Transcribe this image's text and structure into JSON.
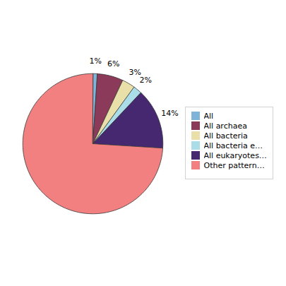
{
  "chart_data": {
    "type": "pie",
    "categories": [
      "All",
      "All archaea",
      "All bacteria",
      "All bacteria e…",
      "All eukaryotes…",
      "Other pattern…"
    ],
    "values": [
      1,
      6,
      3,
      2,
      14,
      74
    ],
    "value_labels": [
      "1%",
      "6%",
      "3%",
      "2%",
      "14%",
      null
    ],
    "colors": [
      "#7fb3d8",
      "#8b3a5a",
      "#e8e0a8",
      "#aadde8",
      "#452870",
      "#f28080"
    ],
    "data_labels": true,
    "legend": "right"
  }
}
